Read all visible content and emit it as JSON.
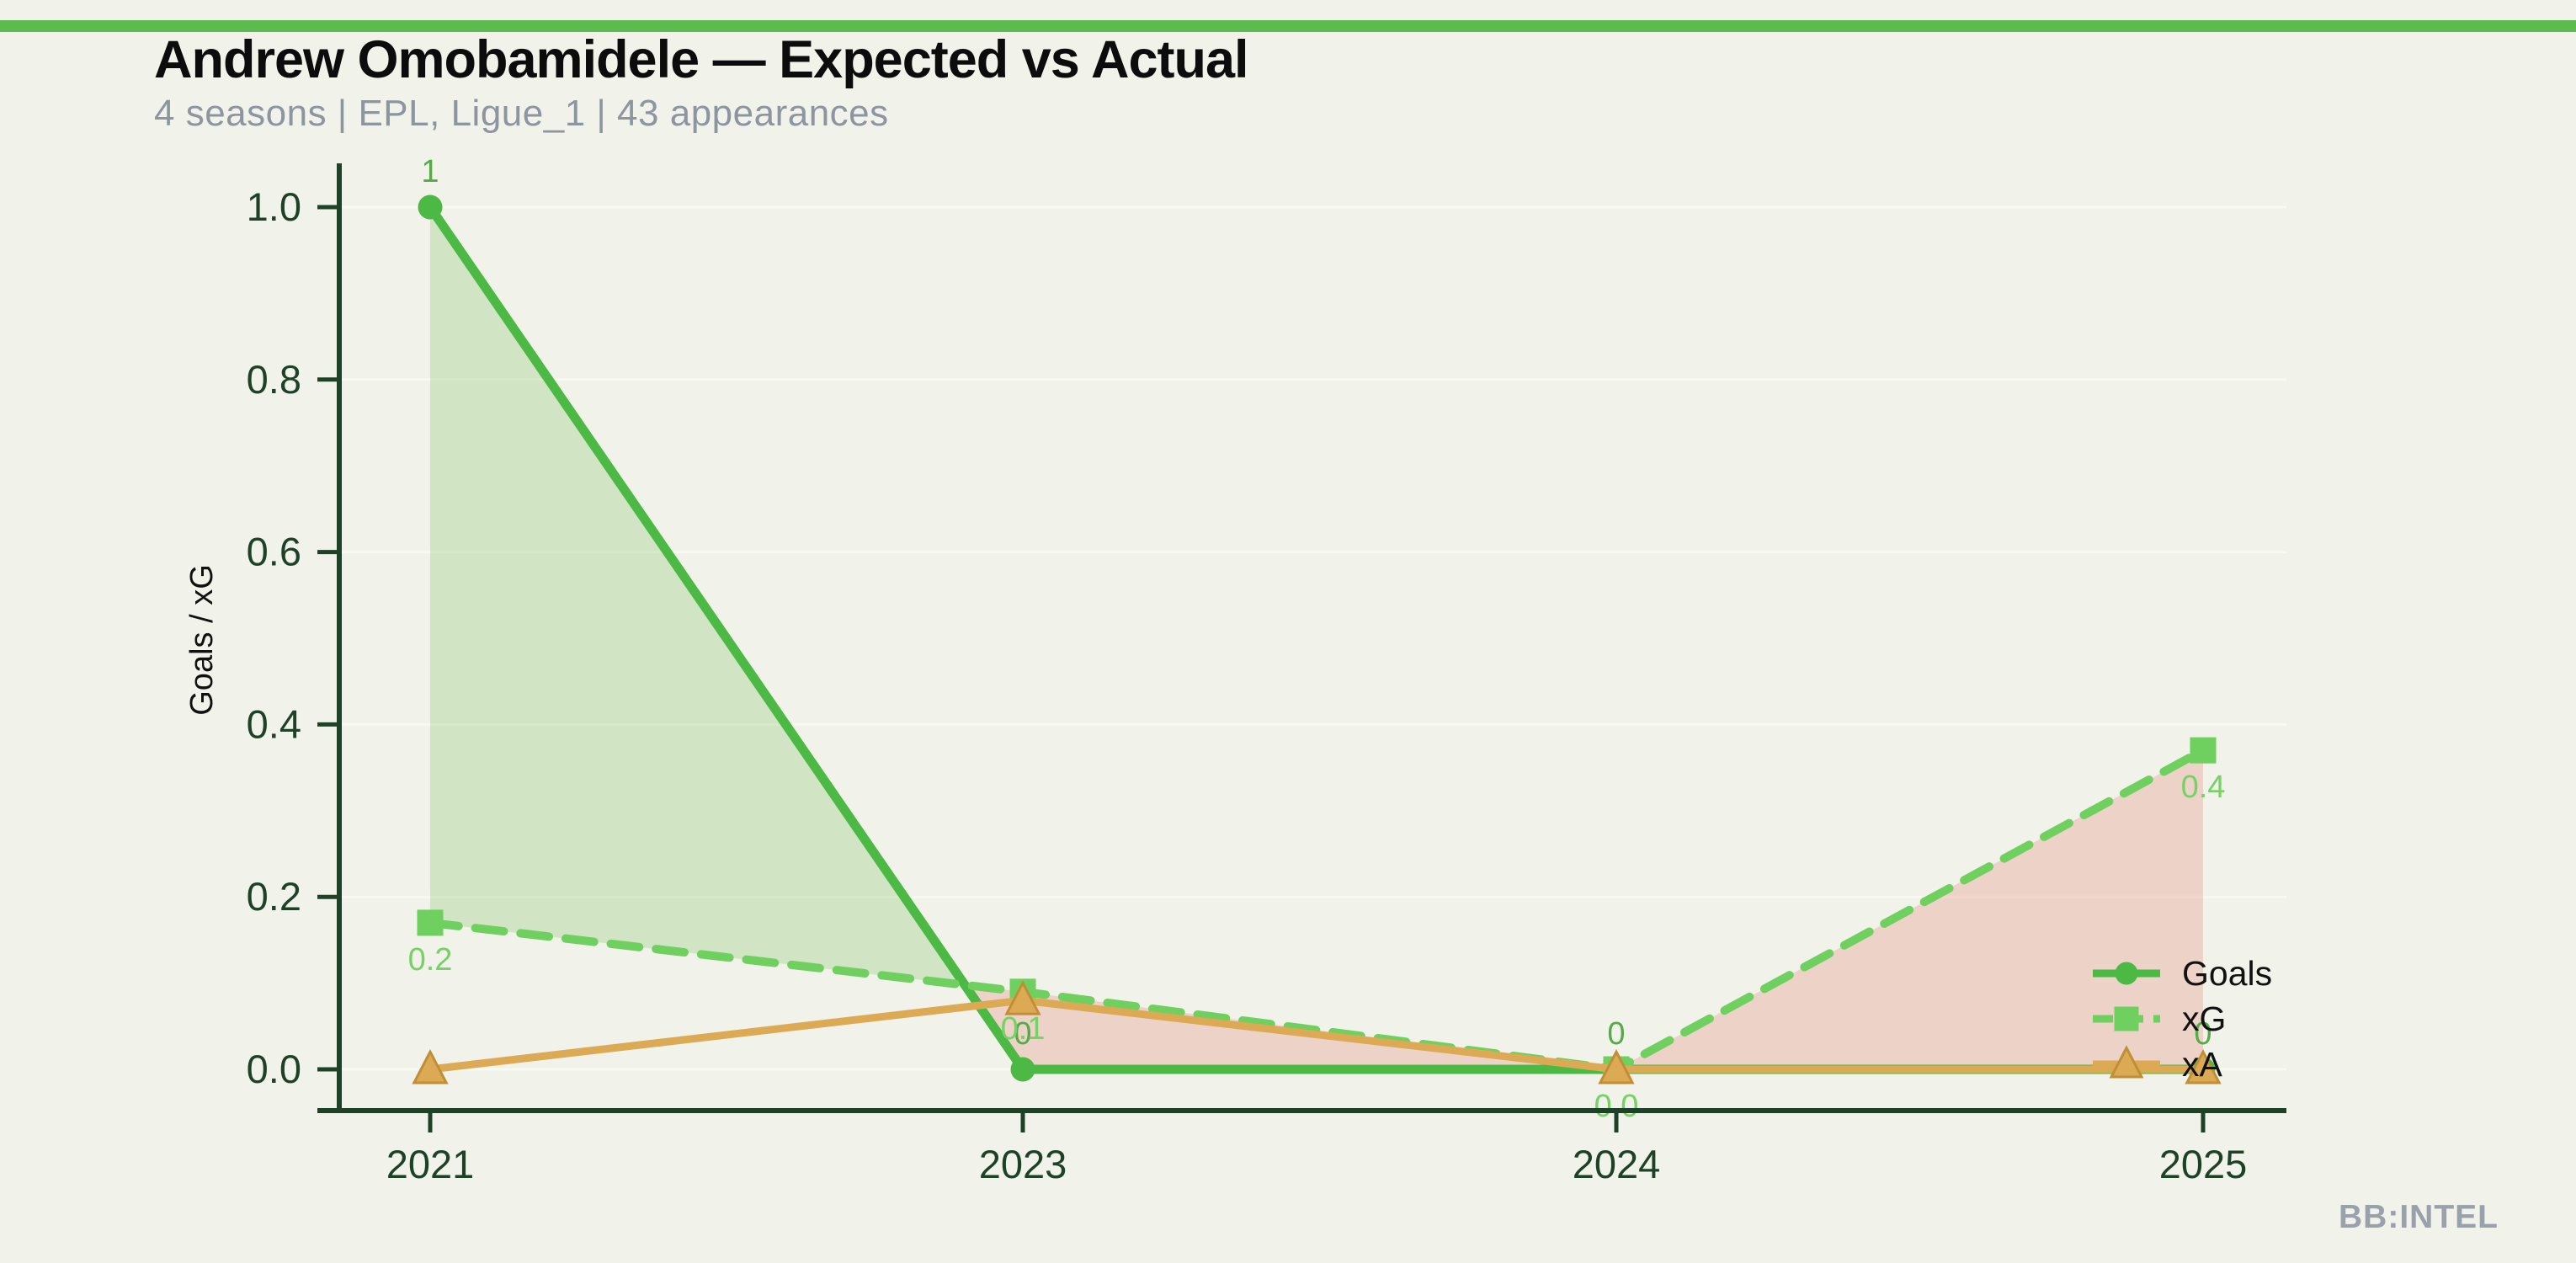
{
  "page": {
    "background_color": "#f1f2e9",
    "accent_bar_color": "#5bbb4c"
  },
  "header": {
    "title": "Andrew Omobamidele — Expected vs Actual",
    "subtitle": "4 seasons | EPL, Ligue_1 | 43 appearances"
  },
  "footer": {
    "brand": "BB:INTEL"
  },
  "chart_data": {
    "type": "line",
    "title": "Andrew Omobamidele — Expected vs Actual",
    "categories": [
      "2021",
      "2023",
      "2024",
      "2025"
    ],
    "xlabel": "",
    "ylabel": "Goals / xG",
    "ylim": [
      0.0,
      1.0
    ],
    "yticks": [
      0.0,
      0.2,
      0.4,
      0.6,
      0.8,
      1.0
    ],
    "ytick_labels": [
      "0.0",
      "0.2",
      "0.4",
      "0.6",
      "0.8",
      "1.0"
    ],
    "grid": "horizontal",
    "legend_position": "lower right",
    "series": [
      {
        "name": "Goals",
        "marker": "circle",
        "line_style": "solid",
        "color": "#4cb944",
        "label_color": "#55ab47",
        "values": [
          1,
          0,
          0,
          0
        ],
        "point_labels": [
          "1",
          "0",
          "0",
          "0"
        ],
        "label_side": "above"
      },
      {
        "name": "xG",
        "marker": "square",
        "line_style": "dashed",
        "color": "#6fd05f",
        "label_color": "#76d264",
        "values": [
          0.17,
          0.09,
          0.0,
          0.37
        ],
        "point_labels": [
          "0.2",
          "0.1",
          "0.0",
          "0.4"
        ],
        "label_side": "below"
      },
      {
        "name": "xA",
        "marker": "triangle",
        "line_style": "solid",
        "color": "#dcaa55",
        "marker_edge_color": "#c08f35",
        "values": [
          0.0,
          0.08,
          0.0,
          0.0
        ],
        "point_labels": [],
        "label_side": "none"
      }
    ],
    "fill_between": {
      "upper_series": "Goals",
      "lower_series": "xG",
      "positive_color": "rgba(124,199,101,0.28)",
      "negative_color": "rgba(228,120,108,0.26)"
    },
    "axis_color": "#1d4228",
    "tick_label_color": "#1d4228",
    "grid_color": "#f8f9f1"
  }
}
